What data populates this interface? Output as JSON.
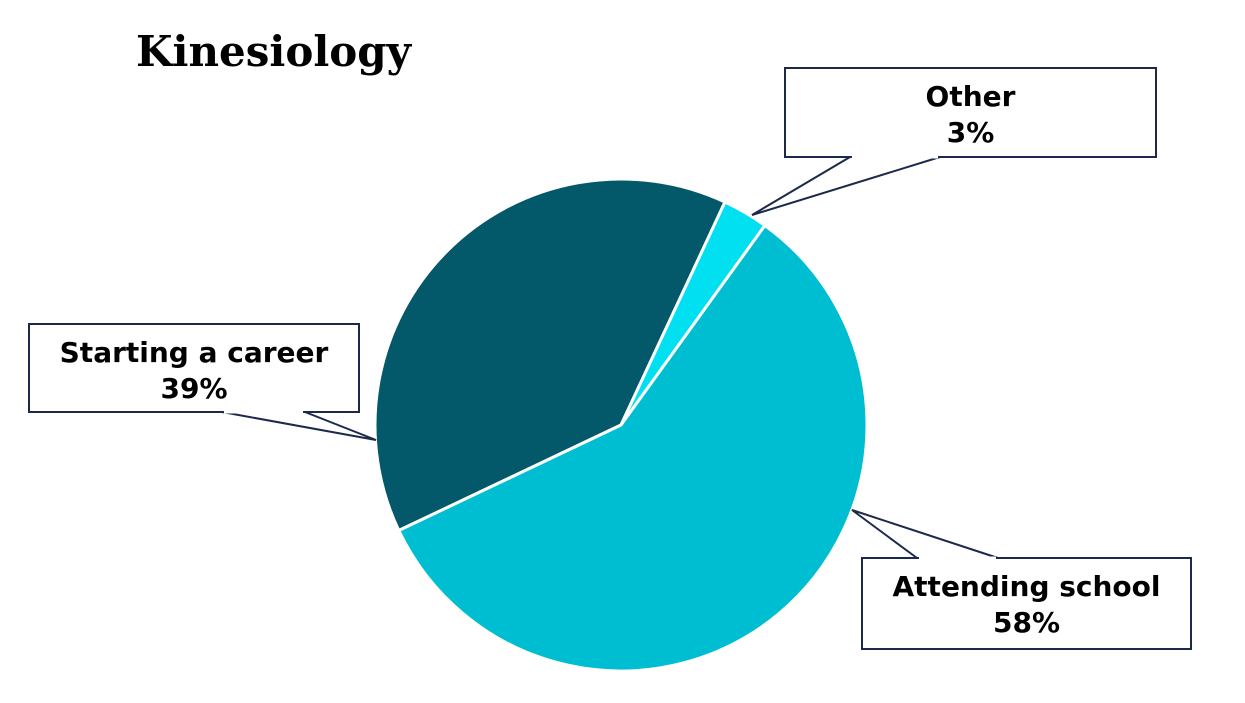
{
  "chart_data": {
    "type": "pie",
    "title": "Kinesiology",
    "slices": [
      {
        "label": "Starting a career",
        "value": 39,
        "value_label": "39%",
        "color": "#03596A"
      },
      {
        "label": "Other",
        "value": 3,
        "value_label": "3%",
        "color": "#00E0F0"
      },
      {
        "label": "Attending school",
        "value": 58,
        "value_label": "58%",
        "color": "#00BED2"
      }
    ],
    "labels_style": "callout-boxes",
    "callout_border_color": "#1B2A4A",
    "legend": "none"
  }
}
